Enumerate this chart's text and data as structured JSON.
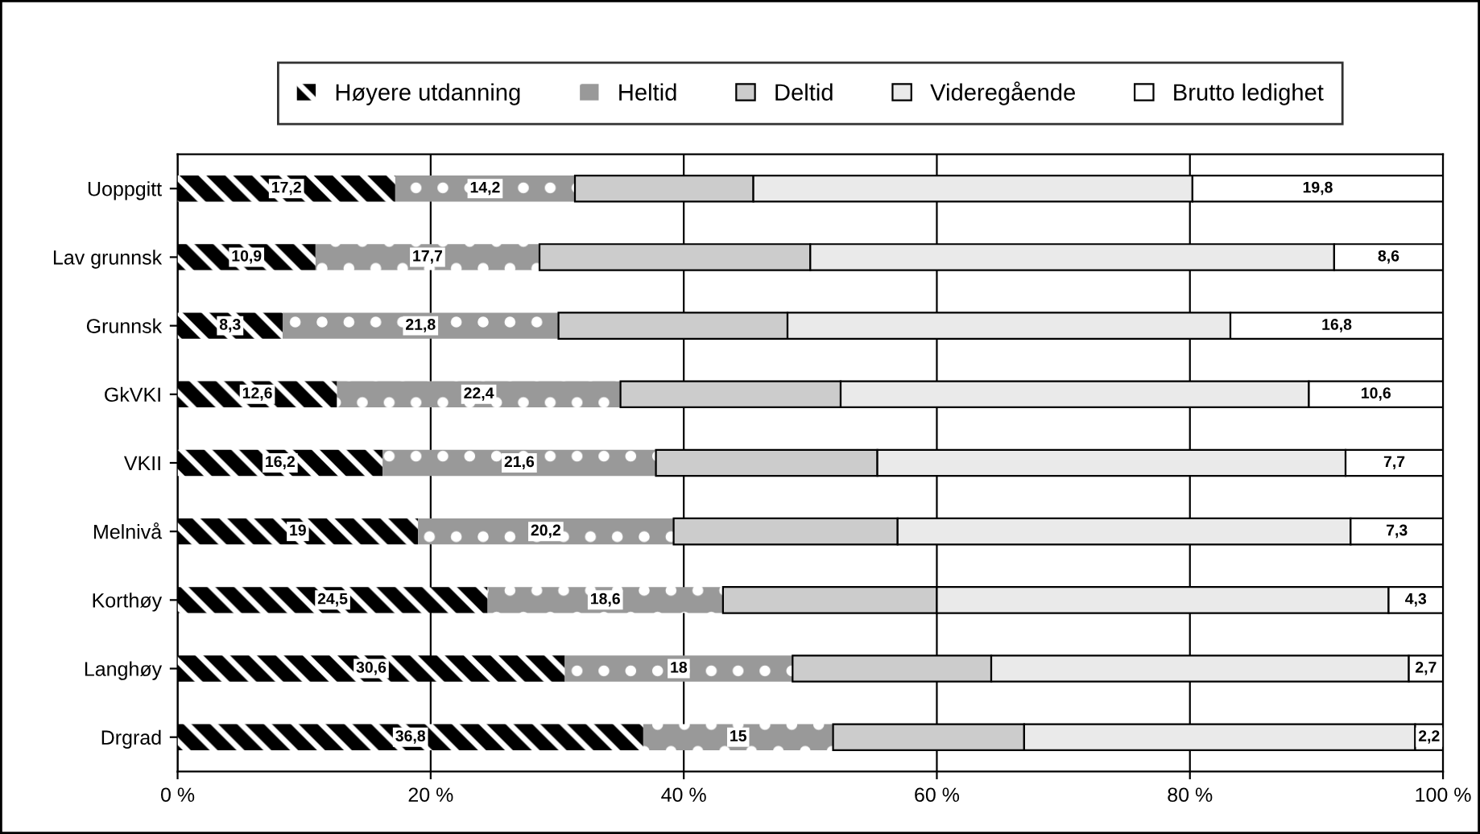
{
  "chart_data": {
    "type": "bar",
    "orientation": "horizontal",
    "stacked": true,
    "categories": [
      "Uoppgitt",
      "Lav grunnsk",
      "Grunnsk",
      "GkVKI",
      "VKII",
      "Melnivå",
      "Korthøy",
      "Langhøy",
      "Drgrad"
    ],
    "series": [
      {
        "name": "Høyere utdanning",
        "color": "#000000",
        "values": [
          17.2,
          10.9,
          8.3,
          12.6,
          16.2,
          19,
          24.5,
          30.6,
          36.8
        ],
        "value_labels": [
          "17,2",
          "10,9",
          "8,3",
          "12,6",
          "16,2",
          "19",
          "24,5",
          "30,6",
          "36,8"
        ]
      },
      {
        "name": "Heltid",
        "color": "#999999",
        "values": [
          14.2,
          17.7,
          21.8,
          22.4,
          21.6,
          20.2,
          18.6,
          18,
          15
        ],
        "value_labels": [
          "14,2",
          "17,7",
          "21,8",
          "22,4",
          "21,6",
          "20,2",
          "18,6",
          "18",
          "15"
        ]
      },
      {
        "name": "Deltid",
        "color": "#cccccc",
        "values": [
          14.1,
          21.4,
          18.1,
          17.4,
          17.5,
          17.7,
          16.9,
          15.7,
          15.1
        ]
      },
      {
        "name": "Videregående",
        "color": "#eaeaea",
        "values": [
          34.7,
          41.4,
          35.0,
          37.0,
          37.0,
          35.8,
          35.7,
          33.0,
          30.9
        ]
      },
      {
        "name": "Brutto ledighet",
        "color": "#ffffff",
        "values": [
          19.8,
          8.6,
          16.8,
          10.6,
          7.7,
          7.3,
          4.3,
          2.7,
          2.2
        ],
        "value_labels": [
          "19,8",
          "8,6",
          "16,8",
          "10,6",
          "7,7",
          "7,3",
          "4,3",
          "2,7",
          "2,2"
        ]
      }
    ],
    "xlim": [
      0,
      100
    ],
    "xticks": [
      {
        "value": 0,
        "label": "0 %"
      },
      {
        "value": 20,
        "label": "20 %"
      },
      {
        "value": 40,
        "label": "40 %"
      },
      {
        "value": 60,
        "label": "60 %"
      },
      {
        "value": 80,
        "label": "80 %"
      },
      {
        "value": 100,
        "label": "100 %"
      }
    ],
    "grid": "x",
    "legend": "top"
  }
}
